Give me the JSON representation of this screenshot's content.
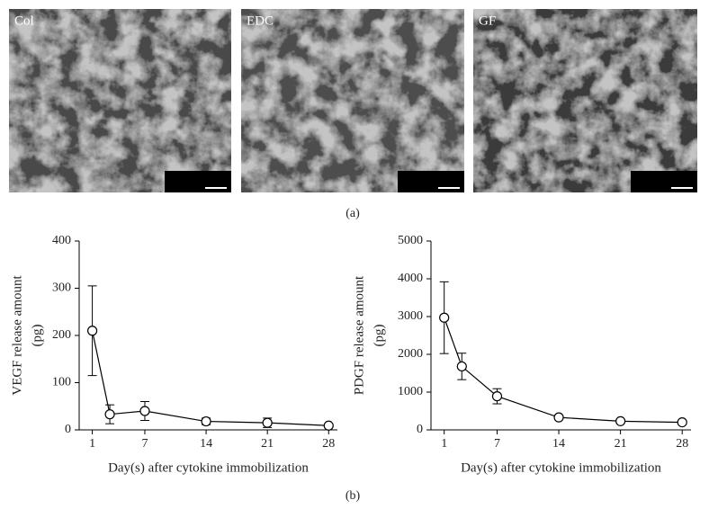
{
  "panel_a": {
    "images": [
      {
        "label": "Col"
      },
      {
        "label": "EDC"
      },
      {
        "label": "GF"
      }
    ],
    "caption": "(a)"
  },
  "panel_b_caption": "(b)",
  "chart_data": [
    {
      "type": "line",
      "y_label": [
        "VEGF release amount",
        "(pg)"
      ],
      "x_label": "Day(s) after cytokine immobilization",
      "x": [
        1,
        3,
        7,
        14,
        21,
        28
      ],
      "values": [
        210,
        33,
        40,
        18,
        15,
        9
      ],
      "errors": [
        95,
        20,
        20,
        7,
        10,
        3
      ],
      "color": "#000000",
      "xlim": [
        -0.5,
        29
      ],
      "xticks": [
        1,
        7,
        14,
        21,
        28
      ],
      "ylim": [
        0,
        400
      ],
      "yticks": [
        0,
        100,
        200,
        300,
        400
      ]
    },
    {
      "type": "line",
      "y_label": [
        "PDGF release amount",
        "(pg)"
      ],
      "x_label": "Day(s) after cytokine immobilization",
      "x": [
        1,
        3,
        7,
        14,
        21,
        28
      ],
      "values": [
        2970,
        1680,
        890,
        330,
        230,
        200
      ],
      "errors": [
        950,
        350,
        200,
        50,
        40,
        30
      ],
      "color": "#000000",
      "xlim": [
        -0.5,
        29
      ],
      "xticks": [
        1,
        7,
        14,
        21,
        28
      ],
      "ylim": [
        0,
        5000
      ],
      "yticks": [
        0,
        1000,
        2000,
        3000,
        4000,
        5000
      ]
    }
  ]
}
